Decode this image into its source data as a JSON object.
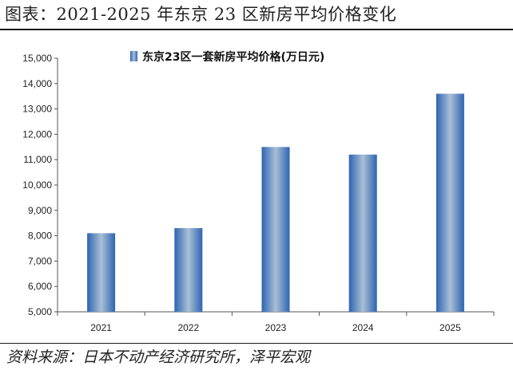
{
  "figure": {
    "title": "图表：2021-2025 年东京 23 区新房平均价格变化",
    "source": "资料来源：日本不动产经济研究所，泽平宏观"
  },
  "chart_data": {
    "type": "bar",
    "categories": [
      "2021",
      "2022",
      "2023",
      "2024",
      "2025"
    ],
    "series": [
      {
        "name": "东京23区一套新房平均价格(万日元)",
        "values": [
          8100,
          8300,
          11500,
          11200,
          13600
        ]
      }
    ],
    "ylim": [
      5000,
      15000
    ],
    "yticks": [
      "5,000",
      "6,000",
      "7,000",
      "8,000",
      "9,000",
      "10,000",
      "11,000",
      "12,000",
      "13,000",
      "14,000",
      "15,000"
    ],
    "ytick_values": [
      5000,
      6000,
      7000,
      8000,
      9000,
      10000,
      11000,
      12000,
      13000,
      14000,
      15000
    ],
    "grid": false,
    "legend_position": "top-center",
    "bar_color_edge": "#2e64b2",
    "bar_color_center": "#a9bfd4"
  }
}
